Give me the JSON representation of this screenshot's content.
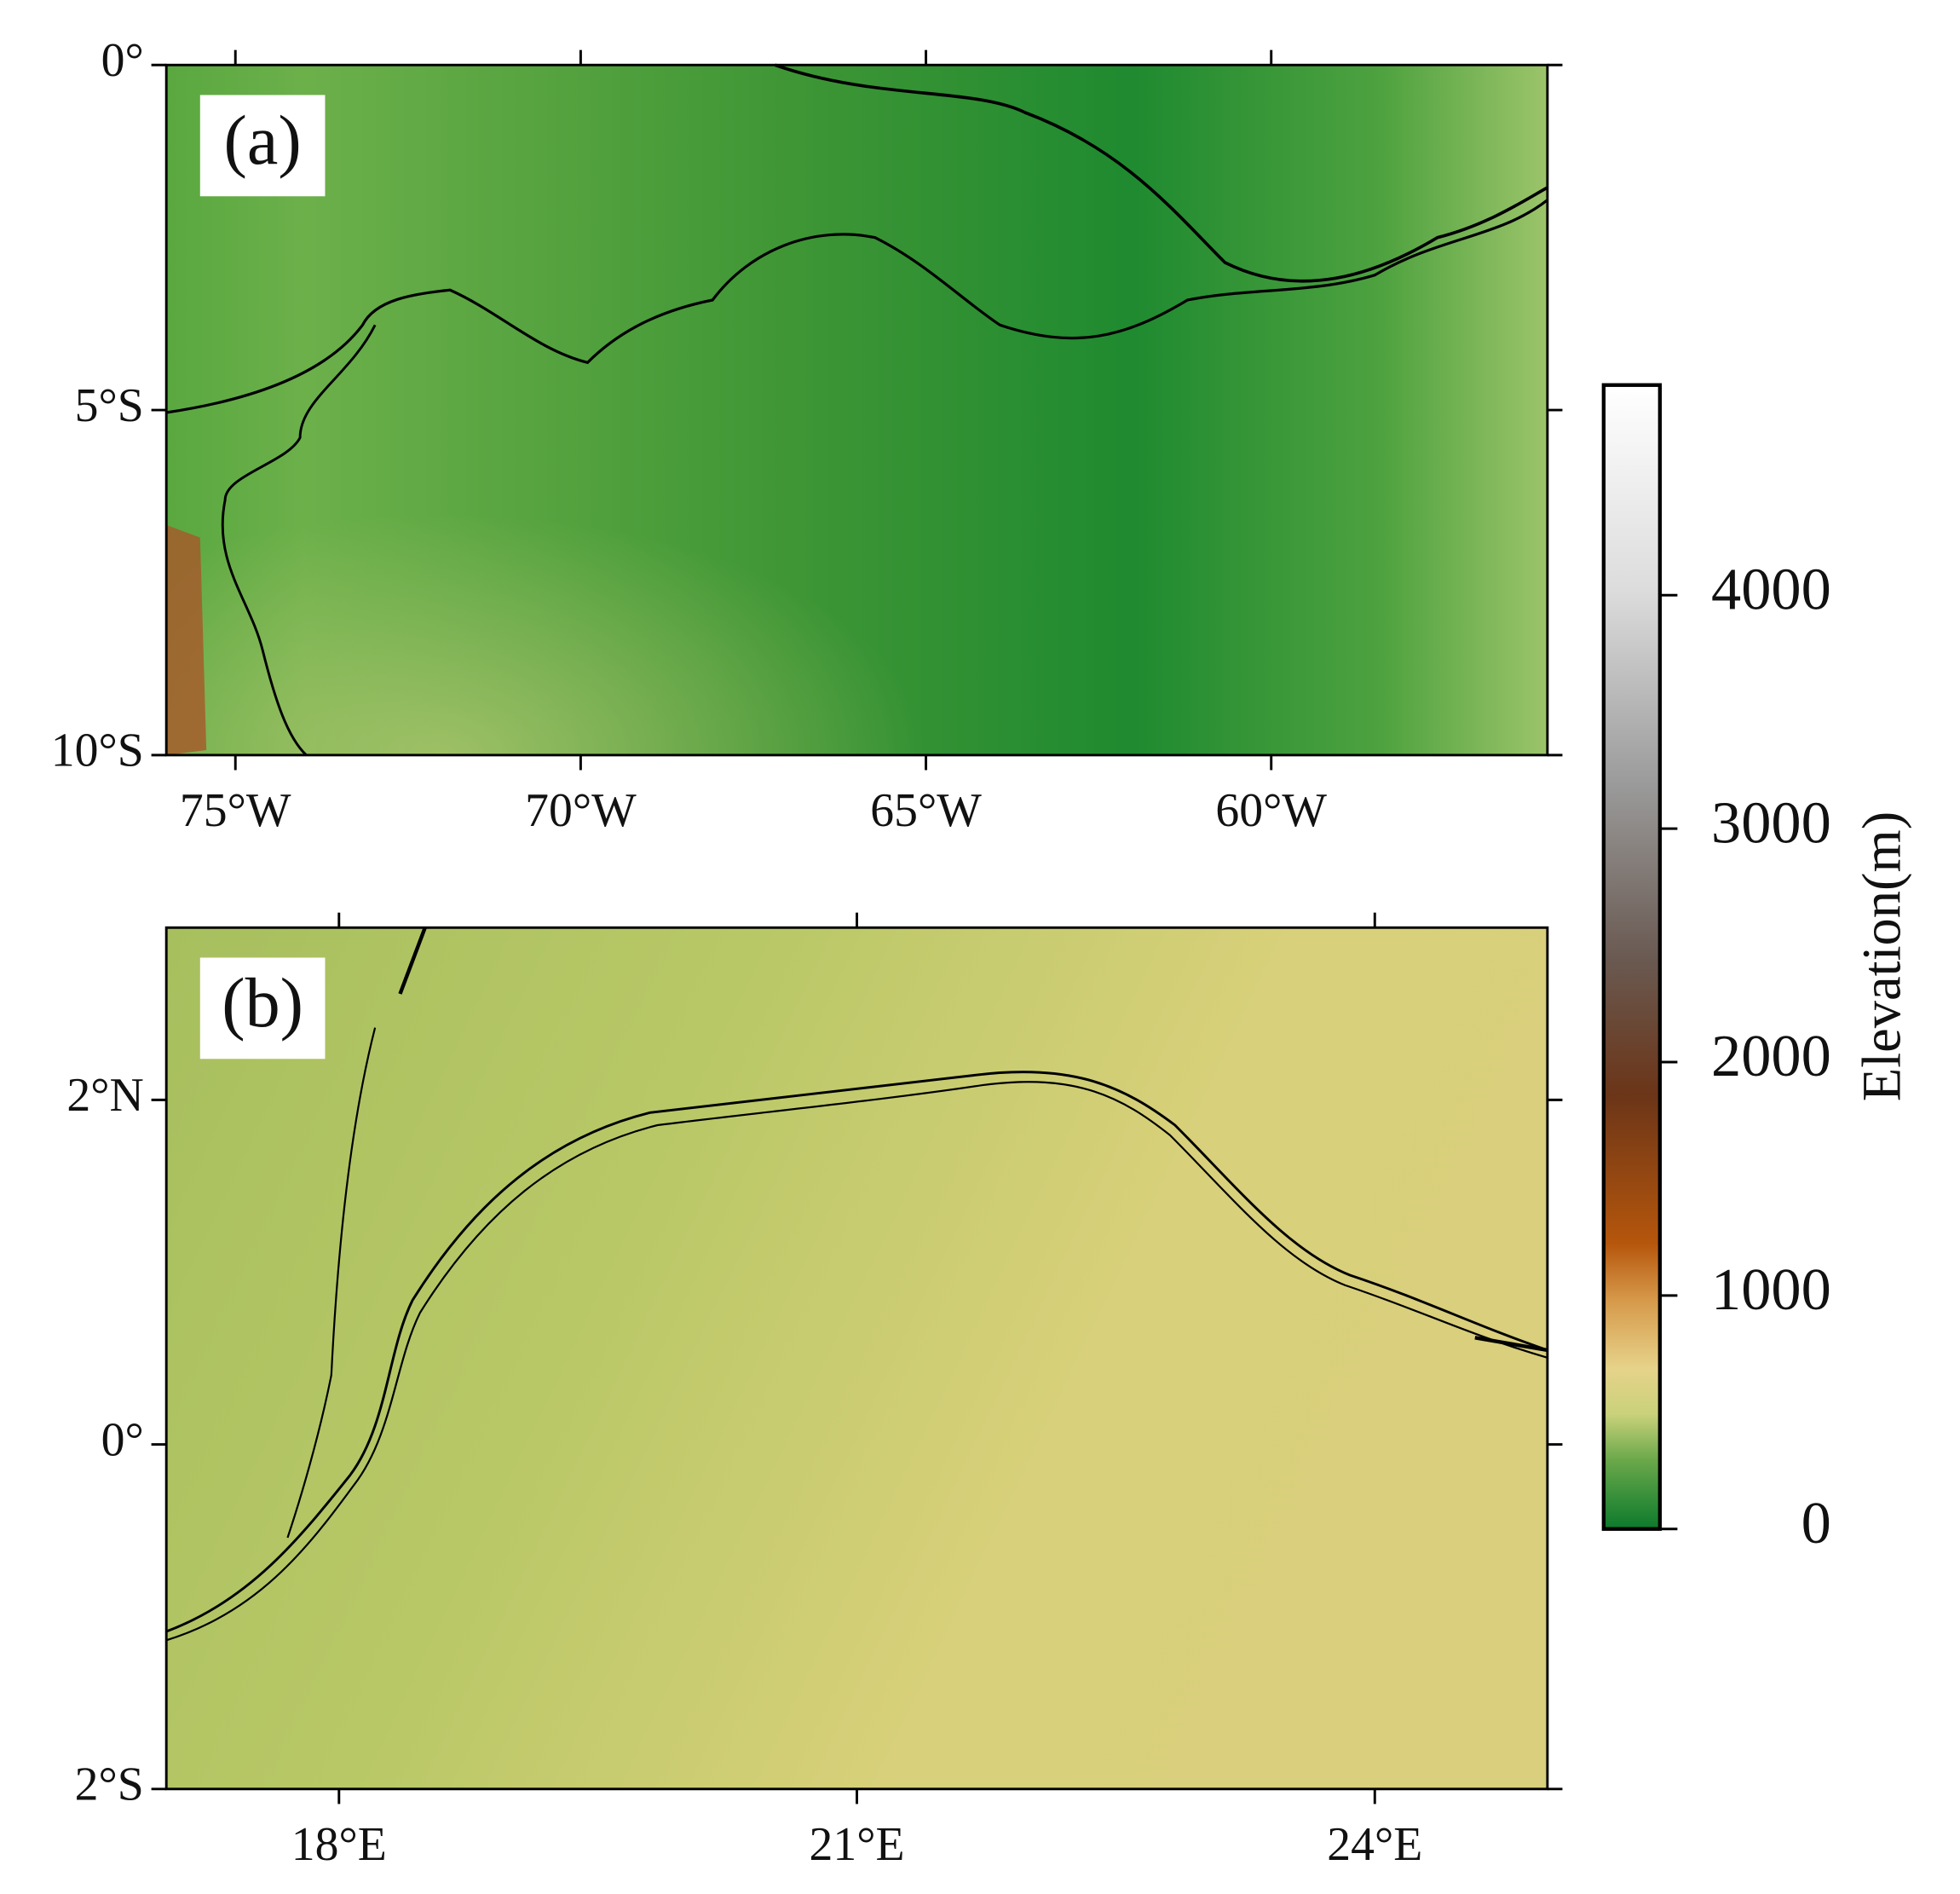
{
  "panels": [
    {
      "label": "(a)",
      "xlim": [
        -76,
        -56
      ],
      "ylim": [
        -10,
        0
      ],
      "xticks": [
        {
          "value": -75,
          "label": "75°W"
        },
        {
          "value": -70,
          "label": "70°W"
        },
        {
          "value": -65,
          "label": "65°W"
        },
        {
          "value": -60,
          "label": "60°W"
        }
      ],
      "yticks": [
        {
          "value": 0,
          "label": "0°"
        },
        {
          "value": -5,
          "label": "5°S"
        },
        {
          "value": -10,
          "label": "10°S"
        }
      ]
    },
    {
      "label": "(b)",
      "xlim": [
        17,
        25
      ],
      "ylim": [
        -2,
        3
      ],
      "xticks": [
        {
          "value": 18,
          "label": "18°E"
        },
        {
          "value": 21,
          "label": "21°E"
        },
        {
          "value": 24,
          "label": "24°E"
        }
      ],
      "yticks": [
        {
          "value": 2,
          "label": "2°N"
        },
        {
          "value": 0,
          "label": "0°"
        },
        {
          "value": -2,
          "label": "2°S"
        }
      ]
    }
  ],
  "colorbar": {
    "label": "Elevation(m)",
    "range": [
      0,
      4900
    ],
    "ticks": [
      0,
      1000,
      2000,
      3000,
      4000
    ]
  }
}
